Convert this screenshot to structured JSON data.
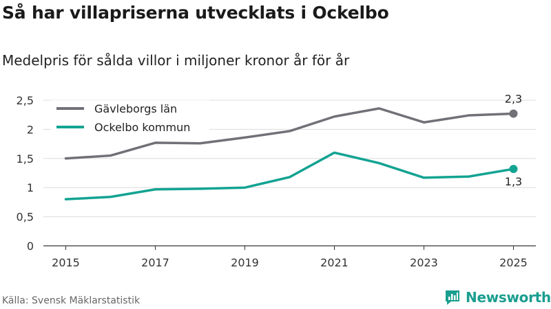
{
  "colors": {
    "gavleborg": "#717077",
    "ockelbo": "#13a392",
    "grid": "#dcdcdc",
    "axis": "#333333",
    "brand": "#1a9e8f"
  },
  "chart_data": {
    "type": "line",
    "title": "Så har villapriserna utvecklats i Ockelbo",
    "subtitle": "Medelpris för sålda villor i miljoner kronor år för år",
    "xlabel": "",
    "ylabel": "",
    "x": [
      2015,
      2016,
      2017,
      2018,
      2019,
      2020,
      2021,
      2022,
      2023,
      2024,
      2025
    ],
    "xticks": [
      "2015",
      "2017",
      "2019",
      "2021",
      "2023",
      "2025"
    ],
    "yticks": [
      "0",
      "0,5",
      "1",
      "1,5",
      "2",
      "2,5"
    ],
    "ylim": [
      0,
      2.5
    ],
    "grid": true,
    "legend_position": "top-left",
    "series": [
      {
        "name": "Gävleborgs län",
        "values": [
          1.5,
          1.55,
          1.77,
          1.76,
          1.86,
          1.97,
          2.22,
          2.36,
          2.12,
          2.24,
          2.27
        ],
        "end_label": "2,3"
      },
      {
        "name": "Ockelbo kommun",
        "values": [
          0.8,
          0.84,
          0.97,
          0.98,
          1.0,
          1.18,
          1.6,
          1.42,
          1.17,
          1.19,
          1.32
        ],
        "end_label": "1,3"
      }
    ]
  },
  "footer": {
    "source": "Källa: Svensk Mäklarstatistik",
    "brand": "Newsworthy"
  }
}
